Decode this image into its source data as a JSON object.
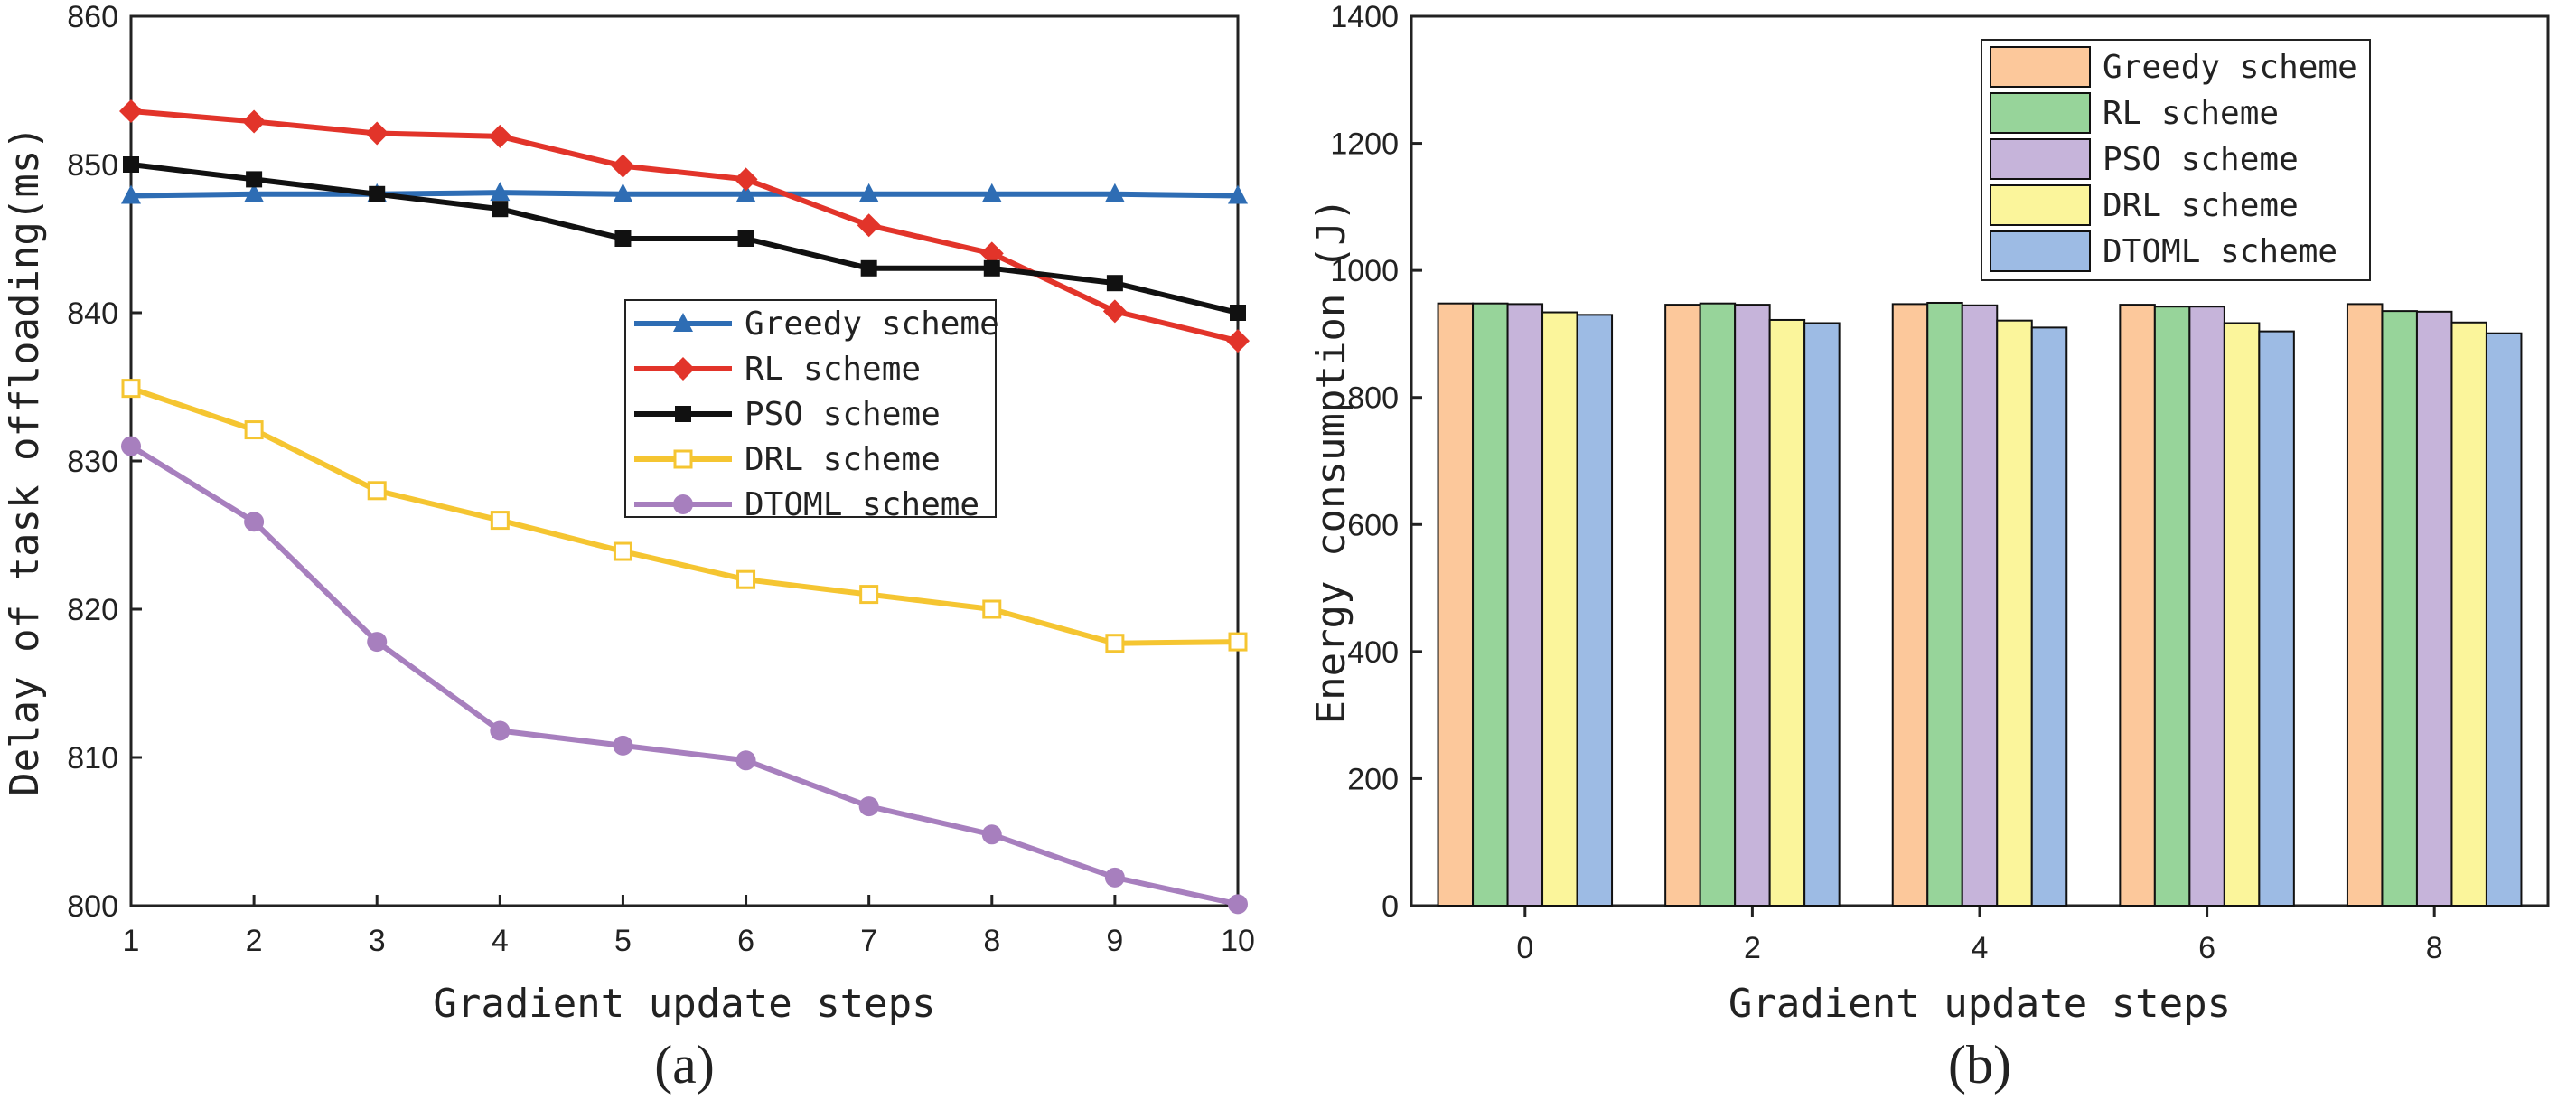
{
  "chart_data": [
    {
      "type": "line",
      "panel_label": "(a)",
      "xlabel": "Gradient update steps",
      "ylabel": "Delay of task offloading(ms)",
      "x": [
        1,
        2,
        3,
        4,
        5,
        6,
        7,
        8,
        9,
        10
      ],
      "xlim": [
        1,
        10
      ],
      "ylim": [
        800,
        860
      ],
      "yticks": [
        800,
        810,
        820,
        830,
        840,
        850,
        860
      ],
      "legend_position": "center-right",
      "series": [
        {
          "name": "Greedy scheme",
          "color": "#2e6db4",
          "marker": "triangle",
          "values": [
            847.9,
            848.0,
            848.0,
            848.1,
            848.0,
            848.0,
            848.0,
            848.0,
            848.0,
            847.9
          ]
        },
        {
          "name": "RL scheme",
          "color": "#e2342a",
          "marker": "diamond",
          "values": [
            853.6,
            852.9,
            852.1,
            851.9,
            849.9,
            849.0,
            845.9,
            844.0,
            840.1,
            838.1
          ]
        },
        {
          "name": "PSO scheme",
          "color": "#111111",
          "marker": "square",
          "values": [
            850.0,
            849.0,
            848.0,
            847.0,
            845.0,
            845.0,
            843.0,
            843.0,
            842.0,
            840.0
          ]
        },
        {
          "name": "DRL scheme",
          "color": "#f5c531",
          "marker": "open-square",
          "values": [
            834.9,
            832.1,
            828.0,
            826.0,
            823.9,
            822.0,
            821.0,
            820.0,
            817.7,
            817.8
          ]
        },
        {
          "name": "DTOML scheme",
          "color": "#a77fbe",
          "marker": "circle",
          "values": [
            831.0,
            825.9,
            817.8,
            811.8,
            810.8,
            809.8,
            806.7,
            804.8,
            801.9,
            800.1
          ]
        }
      ]
    },
    {
      "type": "bar",
      "panel_label": "(b)",
      "xlabel": "Gradient update steps",
      "ylabel": "Energy consumption (J)",
      "categories": [
        "0",
        "2",
        "4",
        "6",
        "8"
      ],
      "ylim": [
        0,
        1400
      ],
      "yticks": [
        0,
        200,
        400,
        600,
        800,
        1000,
        1200,
        1400
      ],
      "legend_position": "top-right",
      "series": [
        {
          "name": "Greedy scheme",
          "color": "#fcc89b",
          "values": [
            948,
            946,
            947,
            946,
            947
          ]
        },
        {
          "name": "RL scheme",
          "color": "#97d49a",
          "values": [
            948,
            948,
            949,
            943,
            936
          ]
        },
        {
          "name": "PSO scheme",
          "color": "#c6b4da",
          "values": [
            947,
            946,
            945,
            943,
            935
          ]
        },
        {
          "name": "DRL scheme",
          "color": "#fbf59b",
          "values": [
            934,
            922,
            921,
            917,
            918
          ]
        },
        {
          "name": "DTOML scheme",
          "color": "#9dbbe4",
          "values": [
            930,
            917,
            910,
            904,
            901
          ]
        }
      ]
    }
  ]
}
